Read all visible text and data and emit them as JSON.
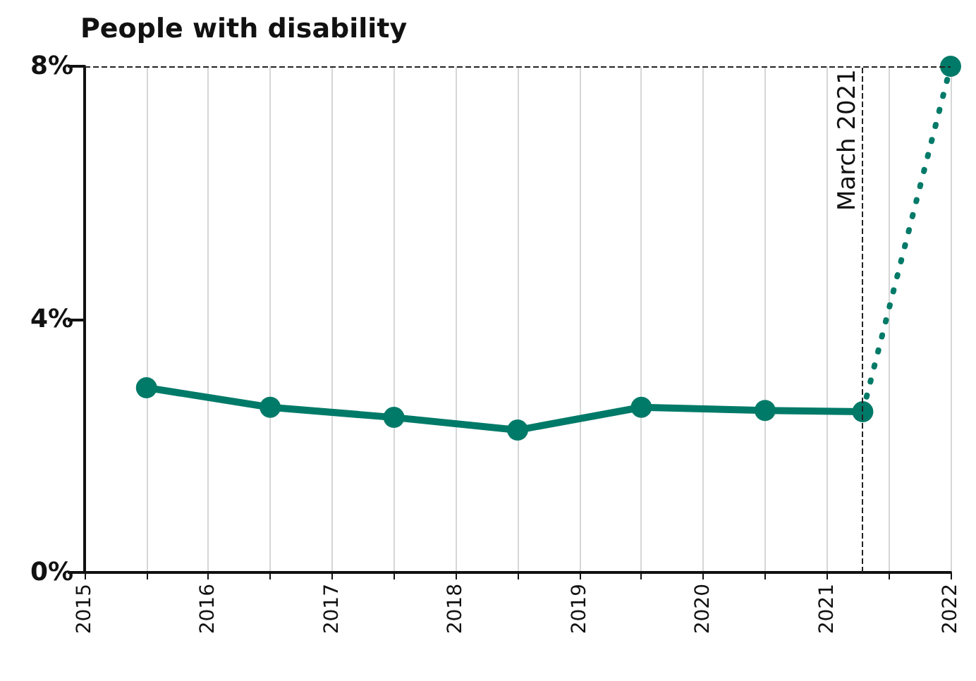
{
  "chart_data": {
    "type": "line",
    "title": "People with disability",
    "series": [
      {
        "color": "#007a68",
        "x": [
          2015.5,
          2016.5,
          2017.5,
          2018.5,
          2019.5,
          2020.5,
          2021.29
        ],
        "values": [
          2.92,
          2.61,
          2.45,
          2.25,
          2.61,
          2.56,
          2.54
        ],
        "marker": "circle",
        "line_style": "solid"
      },
      {
        "color": "#007a68",
        "x": [
          2021.29,
          2022
        ],
        "values": [
          2.54,
          8
        ],
        "marker": "none",
        "line_style": "dotted"
      },
      {
        "type": "scatter",
        "color": "#007a68",
        "x": [
          2022
        ],
        "values": [
          8
        ],
        "marker": "circle"
      }
    ],
    "xlim": [
      2015,
      2022
    ],
    "xticks": [
      2015,
      {
        "value": 2015.5,
        "label": null
      },
      2016,
      {
        "value": 2016.5,
        "label": null
      },
      2017,
      {
        "value": 2017.5,
        "label": null
      },
      2018,
      {
        "value": 2018.5,
        "label": null
      },
      2019,
      {
        "value": 2019.5,
        "label": null
      },
      2020,
      {
        "value": 2020.5,
        "label": null
      },
      2021,
      {
        "value": 2021.5,
        "label": null
      },
      2022
    ],
    "ylim": [
      0,
      8
    ],
    "yticks": [
      {
        "value": 0,
        "label": "0%"
      },
      {
        "value": 4,
        "label": "4%"
      },
      {
        "value": 8,
        "label": "8%"
      }
    ],
    "grid": "x",
    "ref_lines": [
      {
        "axis": "x",
        "value": 2021.29,
        "label": "March 2021",
        "line_style": "dashed",
        "color": "#222222"
      },
      {
        "axis": "y",
        "value": 8,
        "line_style": "dashed",
        "color": "#222222"
      }
    ]
  }
}
